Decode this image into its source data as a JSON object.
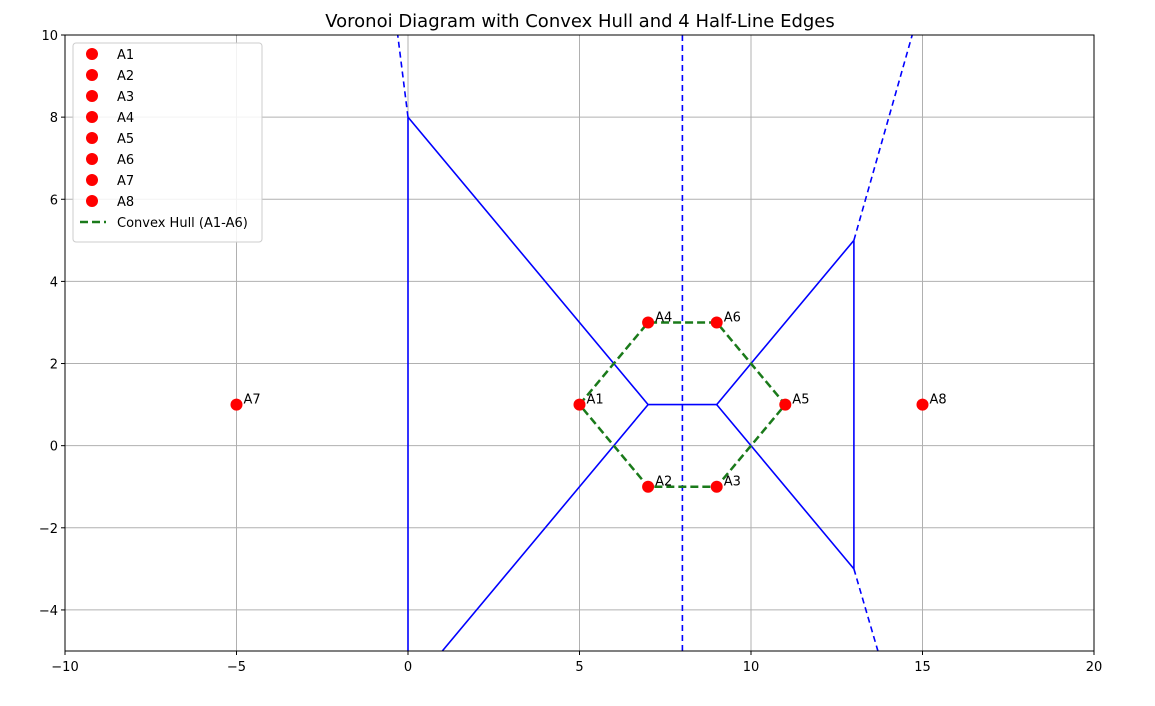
{
  "chart_data": {
    "type": "scatter",
    "title": "Voronoi Diagram with Convex Hull and 4 Half-Line Edges",
    "xlabel": "",
    "ylabel": "",
    "xlim": [
      -10,
      20
    ],
    "ylim": [
      -5,
      10
    ],
    "xticks": [
      -10,
      -5,
      0,
      5,
      10,
      15,
      20
    ],
    "yticks": [
      -4,
      -2,
      0,
      2,
      4,
      6,
      8,
      10
    ],
    "xtick_labels": [
      "−10",
      "−5",
      "0",
      "5",
      "10",
      "15",
      "20"
    ],
    "ytick_labels": [
      "−4",
      "−2",
      "0",
      "2",
      "4",
      "6",
      "8",
      "10"
    ],
    "grid": true,
    "legend_position": "upper-left",
    "colors": {
      "points": "#ff0000",
      "voronoi": "#0000ff",
      "hull": "#1a7a1a",
      "grid": "#b0b0b0"
    },
    "points": [
      {
        "name": "A1",
        "x": 5,
        "y": 1
      },
      {
        "name": "A2",
        "x": 7,
        "y": -1
      },
      {
        "name": "A3",
        "x": 9,
        "y": -1
      },
      {
        "name": "A4",
        "x": 7,
        "y": 3
      },
      {
        "name": "A5",
        "x": 11,
        "y": 1
      },
      {
        "name": "A6",
        "x": 9,
        "y": 3
      },
      {
        "name": "A7",
        "x": -5,
        "y": 1
      },
      {
        "name": "A8",
        "x": 15,
        "y": 1
      }
    ],
    "hull": {
      "name": "Convex Hull (A1-A6)",
      "path": [
        [
          5,
          1
        ],
        [
          7,
          3
        ],
        [
          9,
          3
        ],
        [
          11,
          1
        ],
        [
          9,
          -1
        ],
        [
          7,
          -1
        ],
        [
          5,
          1
        ]
      ]
    },
    "voronoi_edges": [
      {
        "from": [
          0,
          8
        ],
        "to": [
          0,
          -5
        ],
        "style": "solid"
      },
      {
        "from": [
          0,
          8
        ],
        "to": [
          7,
          1
        ],
        "style": "solid"
      },
      {
        "from": [
          7,
          1
        ],
        "to": [
          9,
          1
        ],
        "style": "solid"
      },
      {
        "from": [
          7,
          1
        ],
        "to": [
          1,
          -5
        ],
        "style": "solid"
      },
      {
        "from": [
          9,
          1
        ],
        "to": [
          13,
          5
        ],
        "style": "solid"
      },
      {
        "from": [
          9,
          1
        ],
        "to": [
          13,
          -3
        ],
        "style": "solid"
      },
      {
        "from": [
          13,
          5
        ],
        "to": [
          13,
          -3
        ],
        "style": "solid"
      },
      {
        "from": [
          0,
          8
        ],
        "to": [
          -0.3,
          10
        ],
        "style": "dashed"
      },
      {
        "from": [
          8,
          10
        ],
        "to": [
          8,
          -5
        ],
        "style": "dashed"
      },
      {
        "from": [
          13,
          5
        ],
        "to": [
          14.7,
          10
        ],
        "style": "dashed"
      },
      {
        "from": [
          13,
          -3
        ],
        "to": [
          13.7,
          -5
        ],
        "style": "dashed"
      }
    ]
  }
}
